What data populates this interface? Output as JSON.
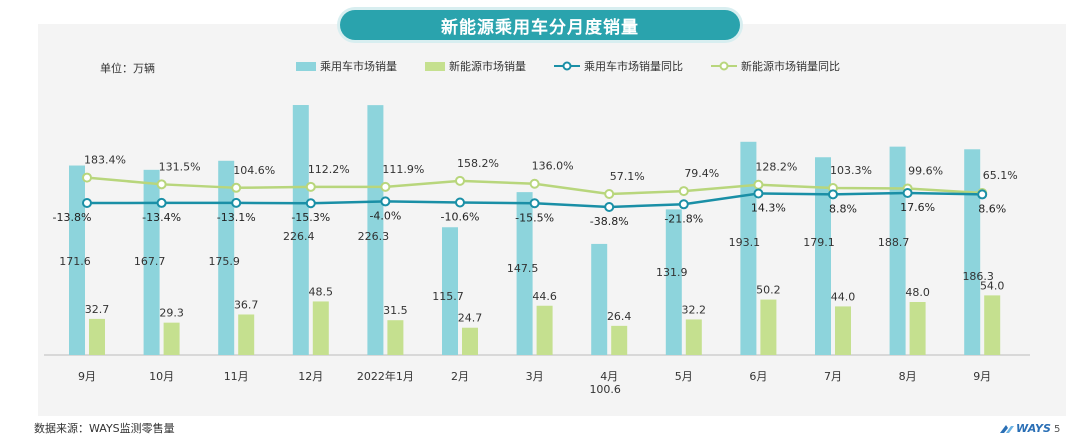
{
  "title": "新能源乘用车分月度销量",
  "unit_label": "单位：万辆",
  "source_label": "数据来源：WAYS监测零售量",
  "logo_text": "WAYS",
  "page_number": "5",
  "colors": {
    "passenger_bar": "#8dd4dc",
    "nev_bar": "#c5e08f",
    "passenger_line": "#1a8fa6",
    "nev_line": "#b8d67c",
    "title_bg": "#2aa3ad"
  },
  "chart_data": {
    "type": "bar",
    "title": "新能源乘用车分月度销量",
    "categories": [
      "9月",
      "10月",
      "11月",
      "12月",
      "2022年1月",
      "2月",
      "3月",
      "4月",
      "5月",
      "6月",
      "7月",
      "8月",
      "9月"
    ],
    "series": [
      {
        "name": "乘用车市场销量",
        "type": "bar",
        "values": [
          171.6,
          167.7,
          175.9,
          226.4,
          226.3,
          115.7,
          147.5,
          100.6,
          131.9,
          193.1,
          179.1,
          188.7,
          186.3
        ]
      },
      {
        "name": "新能源市场销量",
        "type": "bar",
        "values": [
          32.7,
          29.3,
          36.7,
          48.5,
          31.5,
          24.7,
          44.6,
          26.4,
          32.2,
          50.2,
          44.0,
          48.0,
          54.0
        ]
      },
      {
        "name": "乘用车市场销量同比",
        "type": "line",
        "values": [
          -13.8,
          -13.4,
          -13.1,
          -15.3,
          -4.0,
          -10.6,
          -15.5,
          -38.8,
          -21.8,
          14.3,
          8.8,
          17.6,
          8.6
        ]
      },
      {
        "name": "新能源市场销量同比",
        "type": "line",
        "values": [
          183.4,
          131.5,
          104.6,
          112.2,
          111.9,
          158.2,
          136.0,
          57.1,
          79.4,
          128.2,
          103.3,
          99.6,
          65.1
        ]
      }
    ],
    "bar_labels": {
      "passenger": [
        "171.6",
        "167.7",
        "175.9",
        "226.4",
        "226.3",
        "115.7",
        "147.5",
        "100.6",
        "131.9",
        "193.1",
        "179.1",
        "188.7",
        "186.3"
      ],
      "nev": [
        "32.7",
        "29.3",
        "36.7",
        "48.5",
        "31.5",
        "24.7",
        "44.6",
        "26.4",
        "32.2",
        "50.2",
        "44.0",
        "48.0",
        "54.0"
      ]
    },
    "line_labels": {
      "passenger_yoy": [
        "-13.8%",
        "-13.4%",
        "-13.1%",
        "-15.3%",
        "-4.0%",
        "-10.6%",
        "-15.5%",
        "-38.8%",
        "-21.8%",
        "14.3%",
        "8.8%",
        "17.6%",
        "8.6%"
      ],
      "nev_yoy": [
        "183.4%",
        "131.5%",
        "104.6%",
        "112.2%",
        "111.9%",
        "158.2%",
        "136.0%",
        "57.1%",
        "79.4%",
        "128.2%",
        "103.3%",
        "99.6%",
        "65.1%"
      ]
    },
    "ylim_bars": [
      0,
      240
    ],
    "grid": false,
    "legend_position": "top"
  }
}
